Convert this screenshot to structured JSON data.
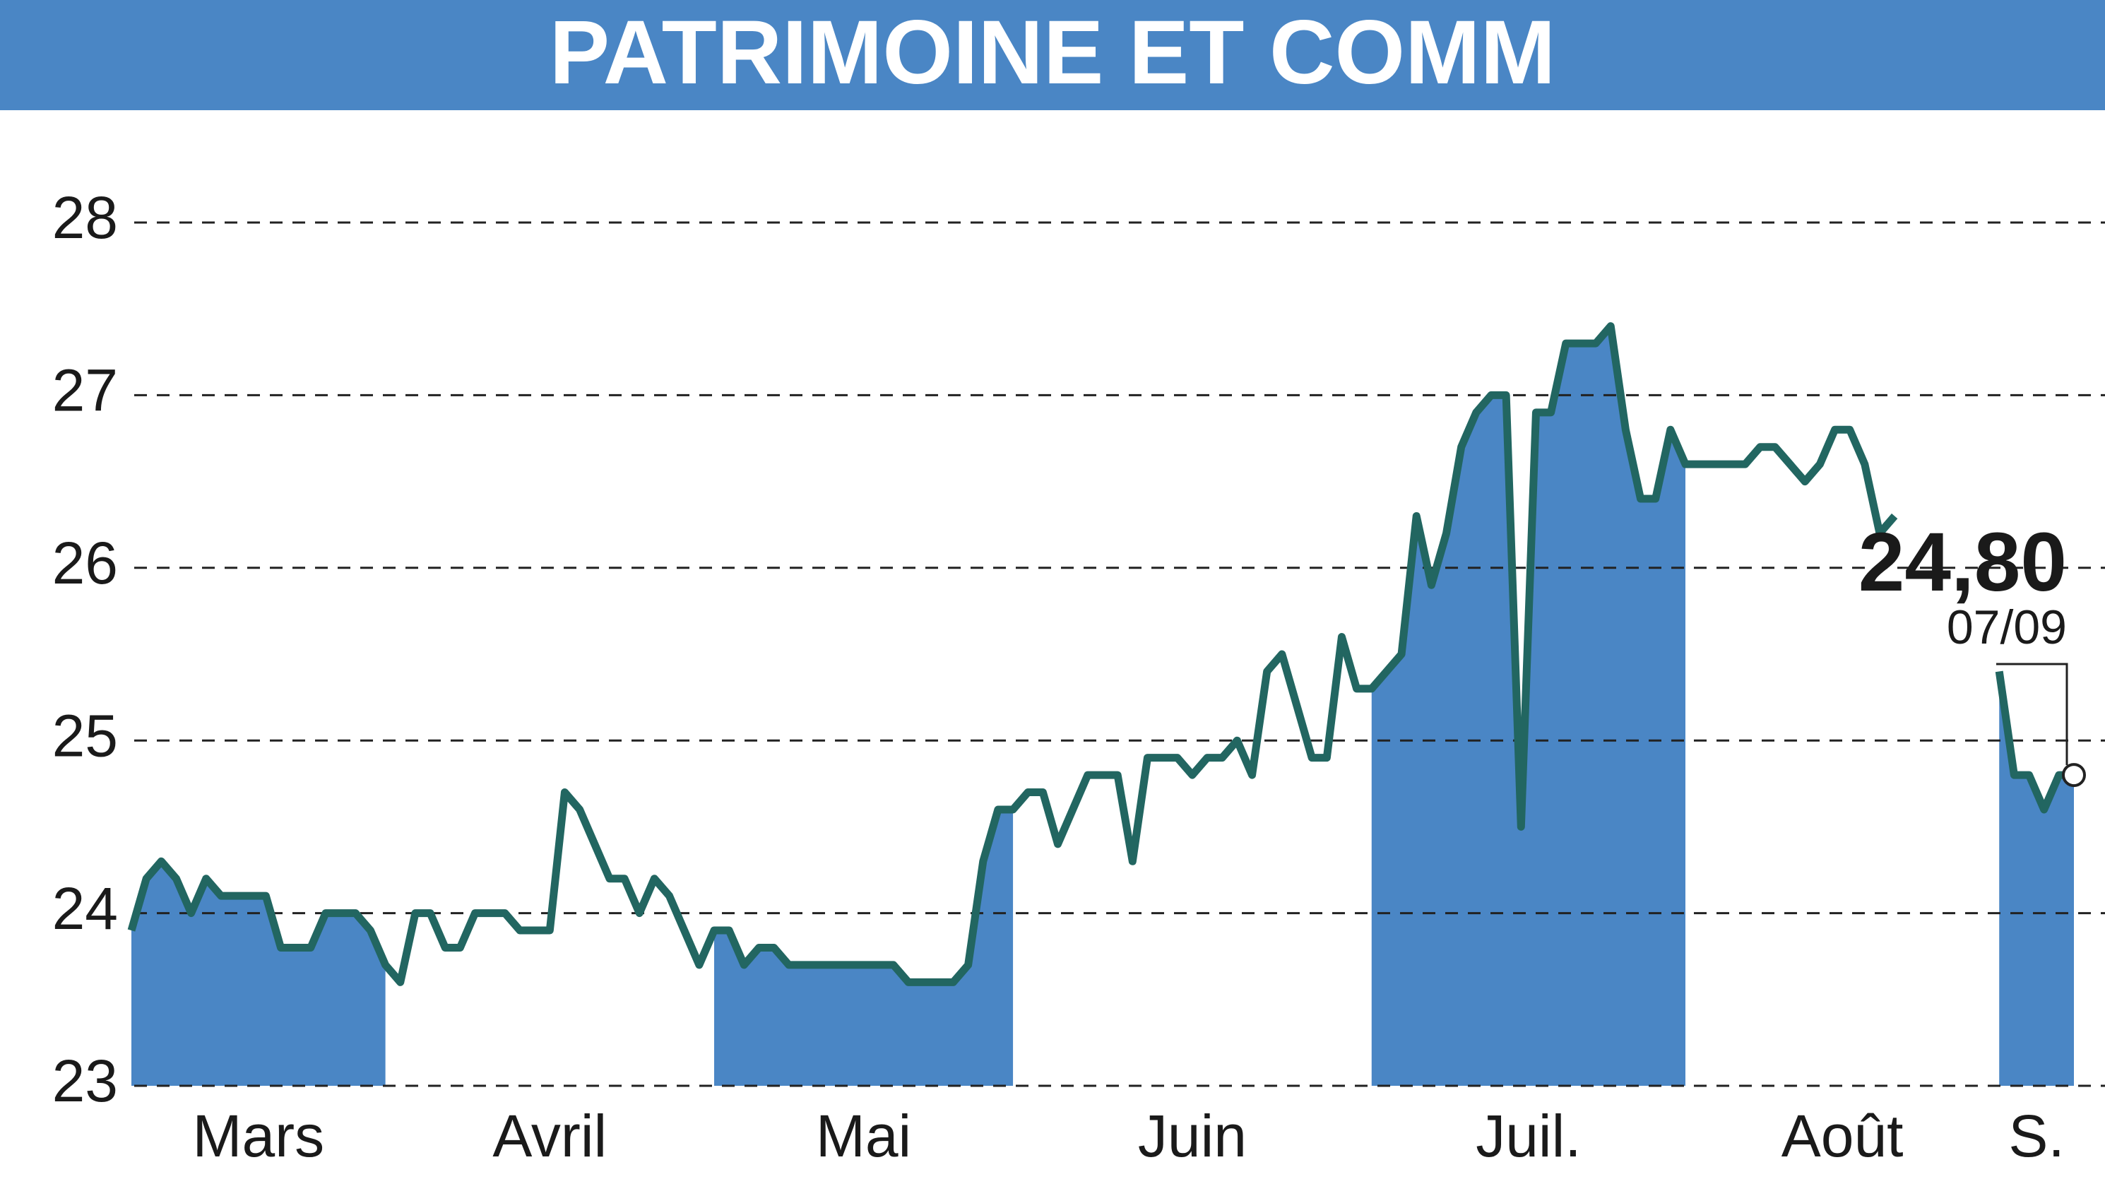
{
  "chart_data": {
    "type": "line",
    "title": "PATRIMOINE ET COMM",
    "categories": [
      "Mars",
      null,
      null,
      null,
      null,
      null,
      null,
      null,
      null,
      null,
      null,
      null,
      null,
      null,
      null,
      null,
      null,
      null,
      "Avril",
      null,
      null,
      null,
      null,
      null,
      null,
      null,
      null,
      null,
      null,
      null,
      null,
      null,
      null,
      null,
      null,
      null,
      null,
      null,
      null,
      "Mai",
      null,
      null,
      null,
      null,
      null,
      null,
      null,
      null,
      null,
      null,
      null,
      null,
      null,
      null,
      null,
      null,
      null,
      null,
      null,
      null,
      "Juin",
      null,
      null,
      null,
      null,
      null,
      null,
      null,
      null,
      null,
      null,
      null,
      null,
      null,
      null,
      null,
      null,
      null,
      null,
      null,
      null,
      null,
      null,
      "Juil.",
      null,
      null,
      null,
      null,
      null,
      null,
      null,
      null,
      null,
      null,
      null,
      null,
      null,
      null,
      null,
      null,
      null,
      null,
      null,
      null,
      null,
      "Août",
      null,
      null,
      null,
      null,
      null,
      null,
      null,
      null,
      null,
      null,
      null,
      null,
      null,
      null,
      null,
      null,
      null,
      null,
      null,
      "S.",
      null,
      null,
      null,
      null,
      null
    ],
    "values": [
      23.9,
      24.2,
      24.3,
      24.2,
      24.0,
      24.2,
      24.1,
      24.1,
      24.1,
      24.1,
      23.8,
      23.8,
      23.8,
      24.0,
      24.0,
      24.0,
      23.9,
      23.7,
      23.6,
      24.0,
      24.0,
      23.8,
      23.8,
      24.0,
      24.0,
      24.0,
      23.9,
      23.9,
      23.9,
      24.7,
      24.6,
      24.4,
      24.2,
      24.2,
      24.0,
      24.2,
      24.1,
      23.9,
      23.7,
      23.9,
      23.9,
      23.7,
      23.8,
      23.8,
      23.7,
      23.7,
      23.7,
      23.7,
      23.7,
      23.7,
      23.7,
      23.7,
      23.6,
      23.6,
      23.6,
      23.6,
      23.7,
      24.3,
      24.6,
      24.6,
      24.7,
      24.7,
      24.4,
      24.6,
      24.8,
      24.8,
      24.8,
      24.3,
      24.9,
      24.9,
      24.9,
      24.8,
      24.9,
      24.9,
      25.0,
      24.8,
      25.4,
      25.5,
      25.2,
      24.9,
      24.9,
      25.6,
      25.3,
      25.3,
      25.4,
      25.5,
      26.3,
      25.9,
      26.2,
      26.7,
      26.9,
      27.0,
      27.0,
      24.5,
      26.9,
      26.9,
      27.3,
      27.3,
      27.3,
      27.4,
      26.8,
      26.4,
      26.4,
      26.8,
      26.6,
      26.6,
      26.6,
      26.6,
      26.6,
      26.7,
      26.7,
      26.6,
      26.5,
      26.6,
      26.8,
      26.8,
      26.6,
      26.2,
      26.3,
      null,
      null,
      null,
      null,
      null,
      null,
      25.4,
      24.8,
      24.8,
      24.6,
      24.8,
      24.8
    ],
    "value_labels": [
      null,
      null,
      null,
      null,
      null,
      null,
      null,
      null,
      null,
      null,
      null,
      null,
      null,
      null,
      null,
      null,
      null,
      null,
      null,
      null,
      null,
      null,
      null,
      null,
      null,
      null,
      null,
      null,
      null,
      null,
      null,
      null,
      null,
      null,
      null,
      null,
      null,
      null,
      null,
      null,
      null,
      null,
      null,
      null,
      null,
      null,
      null,
      null,
      null,
      null,
      null,
      null,
      null,
      null,
      null,
      null,
      null,
      null,
      null,
      null,
      null,
      null,
      null,
      null,
      null,
      null,
      null,
      null,
      null,
      null,
      null,
      null,
      null,
      null,
      null,
      null,
      null,
      null,
      null,
      null,
      null,
      null,
      null,
      null,
      null,
      null,
      null,
      null,
      null,
      null,
      null,
      null,
      null,
      null,
      null,
      null,
      null,
      null,
      null,
      null,
      null,
      null,
      null,
      null,
      null,
      null,
      null,
      null,
      null,
      null,
      null,
      null,
      null,
      null,
      null,
      null,
      null,
      null,
      null,
      null,
      null,
      null,
      null,
      null,
      null,
      null,
      null,
      null,
      null,
      null,
      "24,80"
    ],
    "last_date": "07/09",
    "color": "#226661",
    "area_color": "#4a86c5",
    "ylim": [
      23,
      28
    ],
    "yticks": [
      23,
      24,
      25,
      26,
      27,
      28
    ],
    "grid": true
  }
}
